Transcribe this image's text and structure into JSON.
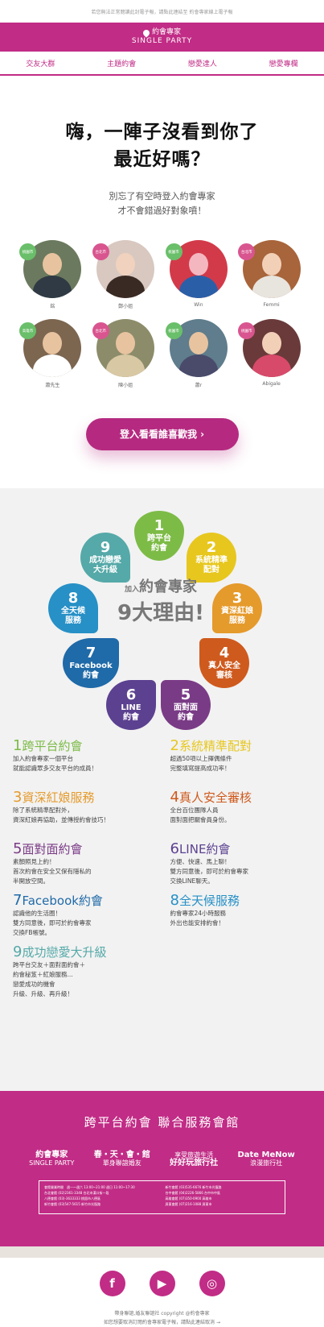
{
  "top_note": "若您無法正常閱讀此封電子報，請點此連結至 約會專家線上電子報",
  "header": {
    "logo_cn": "約會專家",
    "logo_en": "SINGLE PARTY"
  },
  "nav": [
    "交友大群",
    "主題約會",
    "戀愛達人",
    "戀愛專欄"
  ],
  "hero": {
    "title_line1": "嗨，一陣子沒看到你了",
    "title_line2": "最近好嗎？",
    "sub_line1": "別忘了有空時登入約會專家",
    "sub_line2": "才不會錯過好對象噴！"
  },
  "profiles": [
    {
      "name": "銘",
      "badge": "桃園市",
      "badge_color": "g"
    },
    {
      "name": "鄭小姐",
      "badge": "台北市",
      "badge_color": "p"
    },
    {
      "name": "Win",
      "badge": "桃園市",
      "badge_color": "g"
    },
    {
      "name": "Femmi",
      "badge": "台北市",
      "badge_color": "p"
    },
    {
      "name": "蕭先生",
      "badge": "高雄市",
      "badge_color": "g"
    },
    {
      "name": "陳小姐",
      "badge": "台北市",
      "badge_color": "p"
    },
    {
      "name": "蕭r",
      "badge": "桃園市",
      "badge_color": "g"
    },
    {
      "name": "Abigale",
      "badge": "桃園市",
      "badge_color": "p"
    }
  ],
  "cta": {
    "label": "登入看看誰喜歡我 ›"
  },
  "petals": [
    {
      "n": "1",
      "t1": "跨平台",
      "t2": "約會",
      "color": "#7dbb47"
    },
    {
      "n": "2",
      "t1": "系統精準",
      "t2": "配對",
      "color": "#e7c71e"
    },
    {
      "n": "3",
      "t1": "資深紅娘",
      "t2": "服務",
      "color": "#e59a2c"
    },
    {
      "n": "4",
      "t1": "真人安全",
      "t2": "審核",
      "color": "#cf5a1d"
    },
    {
      "n": "5",
      "t1": "面對面",
      "t2": "約會",
      "color": "#7a3b86"
    },
    {
      "n": "6",
      "t1": "LINE",
      "t2": "約會",
      "color": "#5c4190"
    },
    {
      "n": "7",
      "t1": "Facebook",
      "t2": "約會",
      "color": "#1f6aa8"
    },
    {
      "n": "8",
      "t1": "全天候",
      "t2": "服務",
      "color": "#2790c6"
    },
    {
      "n": "9",
      "t1": "成功戀愛",
      "t2": "大升級",
      "color": "#55a9a8"
    }
  ],
  "center": {
    "prefix": "加入",
    "brand": "約會專家",
    "nine": "9大理由!"
  },
  "reasons": [
    {
      "num": "1",
      "title": "跨平台約會",
      "color": "#7dbb47",
      "lines": [
        "加入約會專家一個平台",
        "就能認識眾多交友平台的成員！"
      ]
    },
    {
      "num": "2",
      "title": "系統精準配對",
      "color": "#e7c71e",
      "lines": [
        "超過50項以上擇偶條件",
        "完整填寫提高成功率！"
      ]
    },
    {
      "num": "3",
      "title": "資深紅娘服務",
      "color": "#e59a2c",
      "lines": [
        "除了系統精準配對外，",
        "資深紅娘再協助，並傳授約會技巧！"
      ]
    },
    {
      "num": "4",
      "title": "真人安全審核",
      "color": "#cf5a1d",
      "lines": [
        "全台百位團隊人員",
        "面對面把關會員身份。"
      ]
    },
    {
      "num": "5",
      "title": "面對面約會",
      "color": "#7a3b86",
      "lines": [
        "素顏照見上約！",
        "首次約會在安全又保有隱私的",
        "半開放空間。"
      ]
    },
    {
      "num": "6",
      "title": "LINE約會",
      "color": "#5c4190",
      "lines": [
        "方便、快速、馬上聊！",
        "雙方同意後，即可於約會專家",
        "交換LINE聊天。"
      ]
    },
    {
      "num": "7",
      "title": "Facebook約會",
      "color": "#1f6aa8",
      "lines": [
        "認識他的生活圈！",
        "雙方同意後，即可於約會專家",
        "交換FB帳號。"
      ]
    },
    {
      "num": "8",
      "title": "全天候服務",
      "color": "#2790c6",
      "lines": [
        "約會專家24小時服務",
        "外出也能安排約會！"
      ]
    },
    {
      "num": "9",
      "title": "成功戀愛大升級",
      "color": "#55a9a8",
      "lines": [
        "跨平台交友＋面對面約會＋",
        "約會秘笈＋紅娘服務...",
        "戀愛成功的機會",
        "升級、升級、再升級！"
      ]
    }
  ],
  "footer": {
    "title": "跨平台約會 聯合服務會館",
    "brands": [
      {
        "top": "約會專家",
        "bottom": "SINGLE PARTY"
      },
      {
        "top": "春・天・會・館",
        "bottom": "單身聯誼婚友"
      },
      {
        "top": "好好玩旅行社",
        "bottom": "享受旅遊生活"
      },
      {
        "top": "Date MeNow",
        "bottom": "浪漫旅行社"
      }
    ],
    "addr_left": [
      "會館營業時間　週一～週六 13:00~21:00 週日 11:00~17:30",
      "台北會館 (02)2361-3348 台北市漢口街一段",
      "八德會館 (03)-3633333 桃園市八德區",
      "新竹會館 (03)547-5615 新竹市光復路"
    ],
    "addr_right": [
      "新竹會館 (03)535-6676 新竹市光復路",
      "台中會館 (04)2226-5866 台中市中區",
      "高雄會館 (07)350-0900 高雄市",
      "屏東會館 (07)216-1088 屏東市"
    ]
  },
  "social": {
    "facebook": "f",
    "youtube": "▶",
    "instagram": "◎"
  },
  "foot": {
    "line1": "帶身聯誼,婚友聯誼社 copyright @約會專家",
    "line2": "如您想要取消訂閱約會專家電子報，請點此連結取消 →"
  }
}
